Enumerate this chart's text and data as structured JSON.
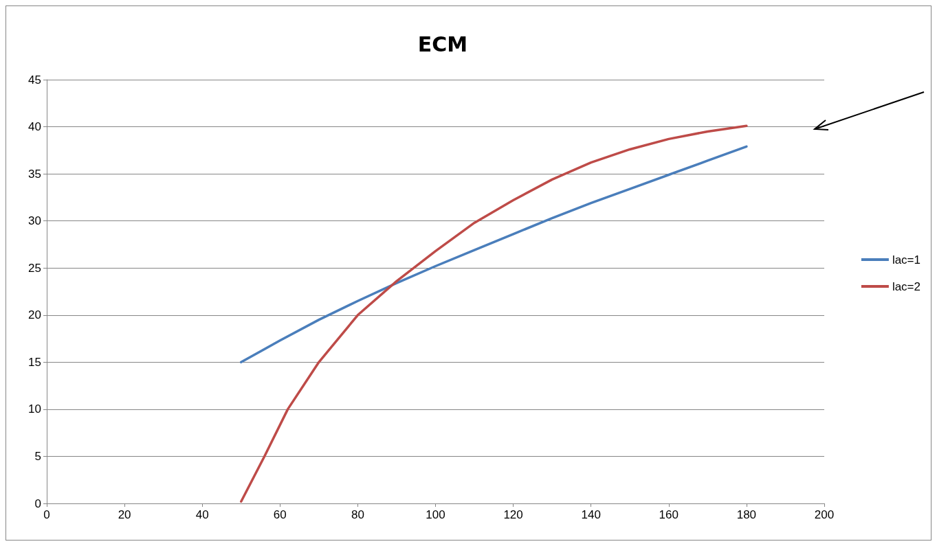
{
  "chart_data": {
    "type": "line",
    "title": "ECM",
    "series": [
      {
        "name": "lac=1",
        "color": "#4a7ebb",
        "x": [
          50,
          60,
          70,
          80,
          90,
          100,
          110,
          120,
          130,
          140,
          150,
          160,
          170,
          180
        ],
        "values": [
          15,
          17.3,
          19.5,
          21.5,
          23.4,
          25.2,
          26.9,
          28.6,
          30.3,
          31.9,
          33.4,
          34.9,
          36.4,
          37.9
        ]
      },
      {
        "name": "lac=2",
        "color": "#be4b48",
        "x": [
          50,
          56,
          62,
          70,
          80,
          90,
          100,
          110,
          120,
          130,
          140,
          150,
          160,
          170,
          180
        ],
        "values": [
          0.2,
          5,
          10,
          15,
          20,
          23.6,
          26.8,
          29.8,
          32.2,
          34.4,
          36.2,
          37.6,
          38.7,
          39.5,
          40.1
        ]
      }
    ],
    "xlim": [
      0,
      200
    ],
    "xticks": [
      0,
      20,
      40,
      60,
      80,
      100,
      120,
      140,
      160,
      180,
      200
    ],
    "ylim": [
      0,
      45
    ],
    "yticks": [
      0,
      5,
      10,
      15,
      20,
      25,
      30,
      35,
      40,
      45
    ],
    "grid": "y",
    "legend": "right",
    "marker": "none",
    "line_style": "solid"
  }
}
